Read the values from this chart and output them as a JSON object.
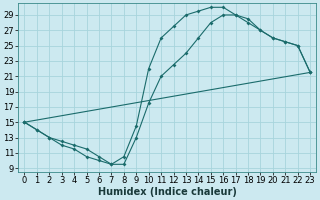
{
  "xlabel": "Humidex (Indice chaleur)",
  "bg_color": "#cce9f0",
  "grid_color": "#a8d4dc",
  "line_color": "#1a6b6b",
  "xlim": [
    -0.5,
    23.5
  ],
  "ylim": [
    8.5,
    30.5
  ],
  "xticks": [
    0,
    1,
    2,
    3,
    4,
    5,
    6,
    7,
    8,
    9,
    10,
    11,
    12,
    13,
    14,
    15,
    16,
    17,
    18,
    19,
    20,
    21,
    22,
    23
  ],
  "yticks": [
    9,
    11,
    13,
    15,
    17,
    19,
    21,
    23,
    25,
    27,
    29
  ],
  "curve1_x": [
    0,
    1,
    2,
    3,
    4,
    5,
    6,
    7,
    8,
    9,
    10,
    11,
    12,
    13,
    14,
    15,
    16,
    17,
    18,
    19,
    20,
    21,
    22,
    23
  ],
  "curve1_y": [
    15,
    14,
    13,
    12.5,
    12,
    11.5,
    10.5,
    9.5,
    10.5,
    14.5,
    22,
    26,
    27.5,
    29,
    29.5,
    30,
    30,
    29,
    28.5,
    27,
    26,
    25.5,
    25,
    21.5
  ],
  "curve2_x": [
    0,
    1,
    2,
    3,
    4,
    5,
    6,
    7,
    8,
    9,
    10,
    11,
    12,
    13,
    14,
    15,
    16,
    17,
    18,
    19,
    20,
    21,
    22,
    23
  ],
  "curve2_y": [
    15,
    14,
    13,
    12,
    11.5,
    10.5,
    10,
    9.5,
    9.5,
    13,
    17.5,
    21,
    22.5,
    24,
    26,
    28,
    29,
    29,
    28,
    27,
    26,
    25.5,
    25,
    21.5
  ],
  "curve3_x": [
    0,
    23
  ],
  "curve3_y": [
    15,
    21.5
  ],
  "xlabel_fontsize": 7,
  "tick_fontsize": 6
}
